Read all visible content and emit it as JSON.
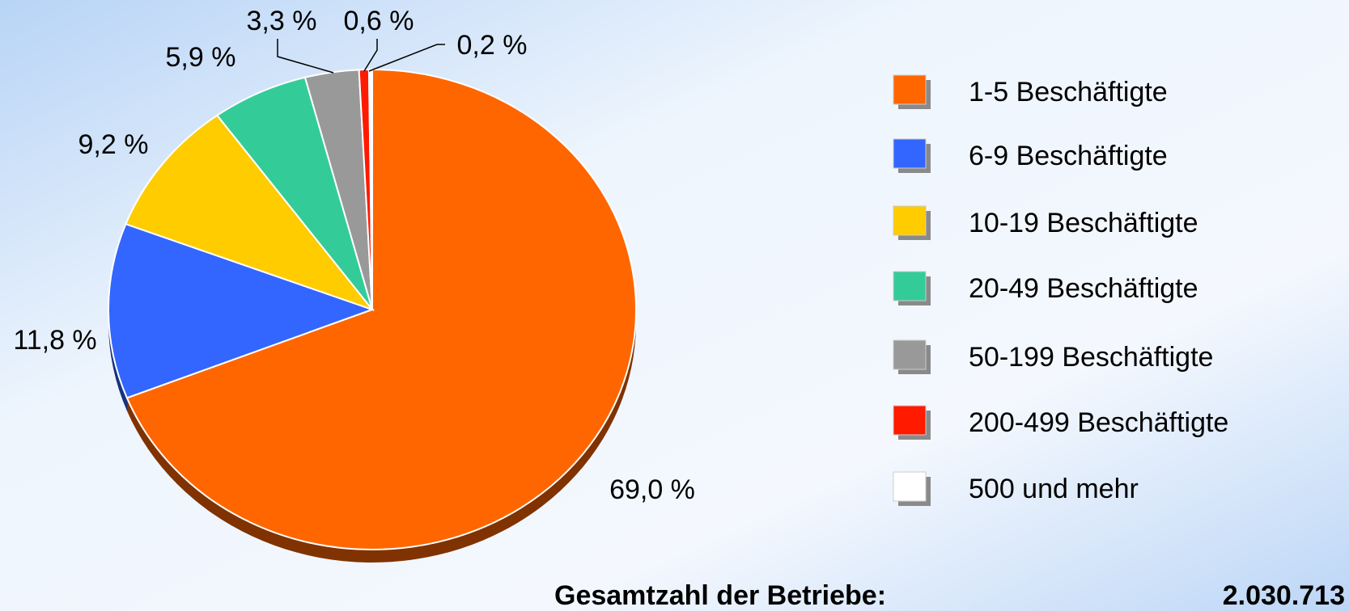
{
  "chart_data": {
    "type": "pie",
    "categories": [
      "1-5 Beschäftigte",
      "6-9 Beschäftigte",
      "10-19 Beschäftigte",
      "20-49 Beschäftigte",
      "50-199 Beschäftigte",
      "200-499 Beschäftigte",
      "500 und mehr"
    ],
    "values": [
      69.0,
      11.8,
      9.2,
      5.9,
      3.3,
      0.6,
      0.2
    ],
    "value_labels": [
      "69,0 %",
      "11,8 %",
      "9,2 %",
      "5,9 %",
      "3,3 %",
      "0,6 %",
      "0,2 %"
    ],
    "colors": [
      "#ff6600",
      "#3366ff",
      "#ffcc00",
      "#33cc99",
      "#999999",
      "#ff1a00",
      "#ffffff"
    ],
    "legend": "right",
    "annotations": [
      "Gesamtzahl der Betriebe:",
      "2.030.713"
    ]
  }
}
